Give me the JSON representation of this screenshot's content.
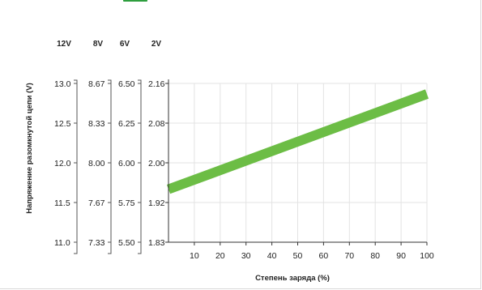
{
  "chart_data": {
    "type": "line",
    "xlabel": "Степень заряда (%)",
    "ylabel": "Напряжение разомкнутой цепи (V)",
    "x_ticks": [
      "10",
      "20",
      "30",
      "40",
      "50",
      "60",
      "70",
      "80",
      "90",
      "100"
    ],
    "xlim": [
      0,
      100
    ],
    "ylim": [
      1.83,
      2.16
    ],
    "voltage_columns": [
      {
        "header": "12V",
        "ticks": [
          "13.0",
          "12.5",
          "12.0",
          "11.5",
          "11.0"
        ]
      },
      {
        "header": "8V",
        "ticks": [
          "8.67",
          "8.33",
          "8.00",
          "7.67",
          "7.33"
        ]
      },
      {
        "header": "6V",
        "ticks": [
          "6.50",
          "6.25",
          "6.00",
          "5.75",
          "5.50"
        ]
      },
      {
        "header": "2V",
        "ticks": [
          "2.16",
          "2.08",
          "2.00",
          "1.92",
          "1.83"
        ]
      }
    ],
    "series": [
      {
        "x": [
          0,
          100
        ],
        "y": [
          1.94,
          2.138
        ],
        "color": "#6cbd45"
      }
    ],
    "grid": true
  }
}
